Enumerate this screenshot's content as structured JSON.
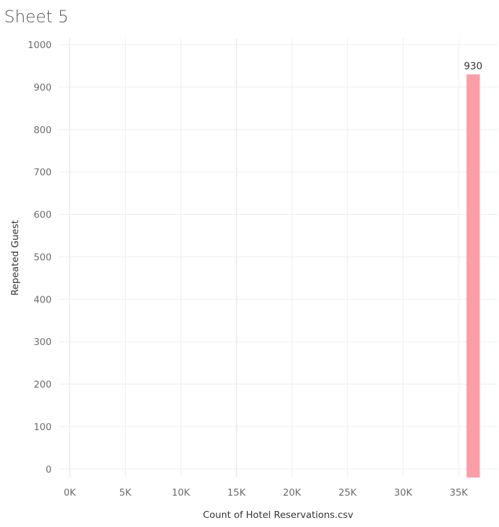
{
  "sheet": {
    "title": "Sheet 5"
  },
  "colors": {
    "bar": "#ff9da7",
    "grid": "#ededed",
    "zero_line": "#e2e2e2"
  },
  "chart_data": {
    "type": "bar",
    "orientation": "vertical",
    "xlabel": "Count of Hotel Reservations.csv",
    "ylabel": "Repeated Guest",
    "xlim": [
      -1000,
      38500
    ],
    "ylim": [
      -20,
      1015
    ],
    "x_ticks": [
      0,
      5000,
      10000,
      15000,
      20000,
      25000,
      30000,
      35000
    ],
    "x_tick_labels": [
      "0K",
      "5K",
      "10K",
      "15K",
      "20K",
      "25K",
      "30K",
      "35K"
    ],
    "y_ticks": [
      0,
      100,
      200,
      300,
      400,
      500,
      600,
      700,
      800,
      900,
      1000
    ],
    "y_tick_labels": [
      "0",
      "100",
      "200",
      "300",
      "400",
      "500",
      "600",
      "700",
      "800",
      "900",
      "1000"
    ],
    "bars": [
      {
        "x": 36300,
        "value": 930,
        "label": "930"
      }
    ],
    "grid": true
  }
}
